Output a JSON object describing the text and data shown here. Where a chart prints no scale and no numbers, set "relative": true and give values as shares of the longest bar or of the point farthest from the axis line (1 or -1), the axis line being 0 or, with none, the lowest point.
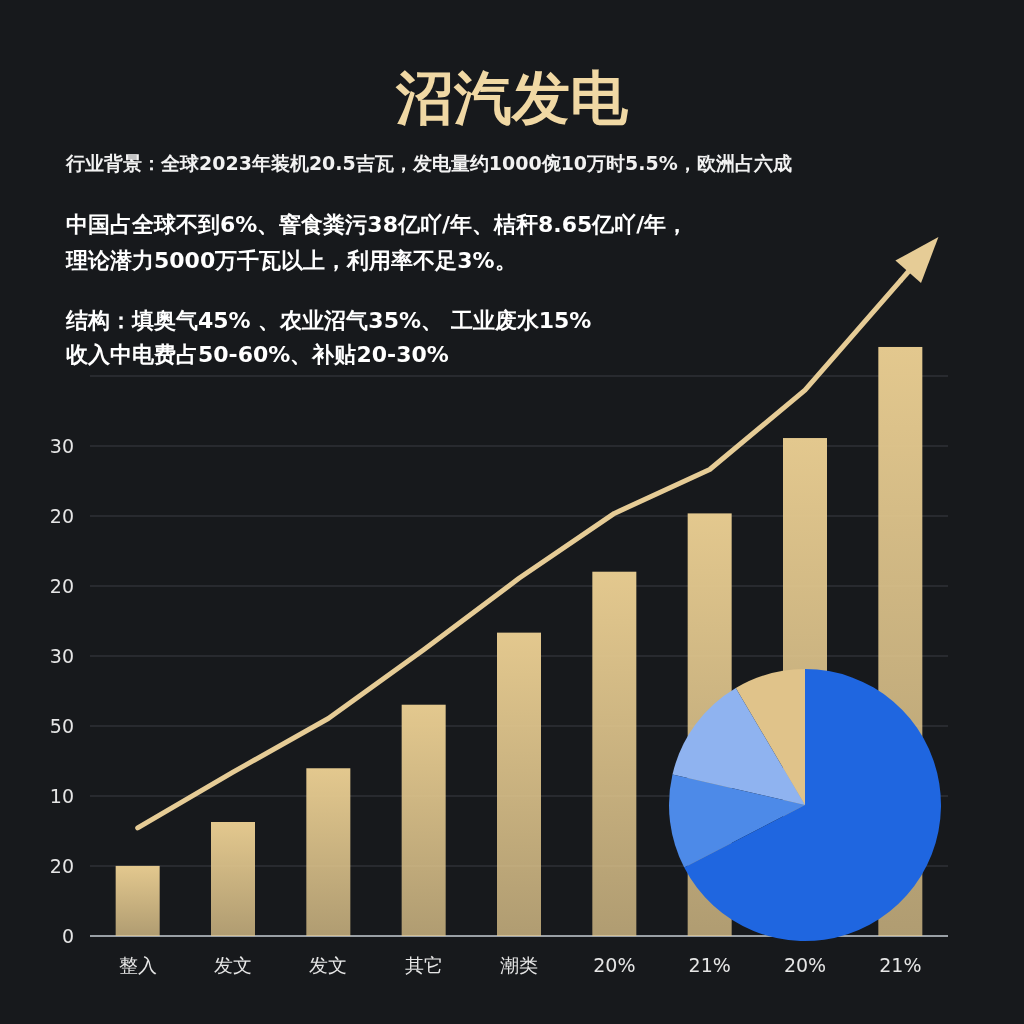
{
  "chart_data": [
    {
      "type": "bar",
      "title": "沼汽发电",
      "subtitle": "行业背景：全球2023年装机20.5吉瓦，发电量约1000倇10万时5.5%，欧洲占六成",
      "annotations": [
        "中国占全球不到6%、窨食粪污38亿吖/年、桔秆8.65亿吖/年，",
        "理论潜力5000万千瓦以上，利用率不足3%。",
        "结构：填奥气45% 、农业沼气35%、 工业废水15%",
        "收入中电费占50-60%、补贴20-30%",
        "0",
        "20",
        "10",
        "50",
        "30",
        "20",
        "20",
        "30"
      ],
      "categories": [
        "整入",
        "发文",
        "发文",
        "其它",
        "潮类",
        "20%",
        "21%",
        "20%",
        "21%"
      ],
      "relative": true,
      "grid": "y",
      "series": [
        {
          "type": "bar",
          "color": "#e3c88e",
          "values": [
            0.107,
            0.174,
            0.256,
            0.353,
            0.463,
            0.556,
            0.645,
            0.76,
            0.899
          ]
        },
        {
          "type": "line",
          "color": "#e6cc96",
          "marker": "none",
          "values": [
            0.165,
            0.25,
            0.332,
            0.437,
            0.546,
            0.645,
            0.712,
            0.833,
            1.0
          ]
        }
      ]
    },
    {
      "type": "pie",
      "categories": [
        null,
        null,
        null,
        null
      ],
      "values": [
        8.5,
        12.9,
        11.2,
        67.4
      ],
      "colors": [
        "#e0c38a",
        "#8fb3f0",
        "#4d8ae8",
        "#1f66e0"
      ]
    }
  ]
}
